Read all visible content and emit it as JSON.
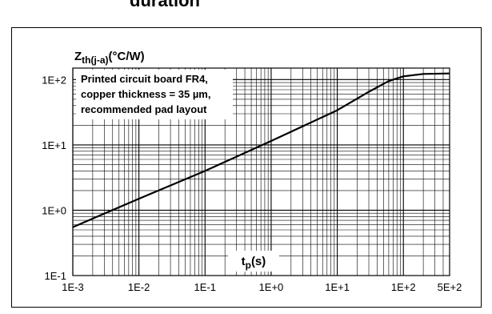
{
  "header": {
    "title_fragment": "duration"
  },
  "chart_data": {
    "type": "line",
    "title": "",
    "ylabel_main": "Z",
    "ylabel_sub": "th(j-a)",
    "ylabel_unit": "(°C/W)",
    "xlabel_main": "t",
    "xlabel_sub": "p",
    "xlabel_unit": "(s)",
    "x_scale": "log",
    "y_scale": "log",
    "xlim": [
      0.001,
      500
    ],
    "ylim": [
      0.1,
      150
    ],
    "x_tick_values": [
      0.001,
      0.01,
      0.1,
      1,
      10,
      100,
      500
    ],
    "x_tick_labels": [
      "1E-3",
      "1E-2",
      "1E-1",
      "1E+0",
      "1E+1",
      "1E+2",
      "5E+2"
    ],
    "y_tick_values": [
      0.1,
      1,
      10,
      100
    ],
    "y_tick_labels": [
      "1E-1",
      "1E+0",
      "1E+1",
      "1E+2"
    ],
    "grid": true,
    "annotation_lines": [
      "Printed circuit board FR4,",
      "copper thickness = 35 µm,",
      "recommended pad layout"
    ],
    "series": [
      {
        "x": [
          0.001,
          0.01,
          0.1,
          1,
          10,
          30,
          60,
          100,
          200,
          500
        ],
        "y": [
          0.55,
          1.5,
          4.0,
          11.5,
          34,
          65,
          95,
          112,
          122,
          124
        ]
      }
    ]
  }
}
